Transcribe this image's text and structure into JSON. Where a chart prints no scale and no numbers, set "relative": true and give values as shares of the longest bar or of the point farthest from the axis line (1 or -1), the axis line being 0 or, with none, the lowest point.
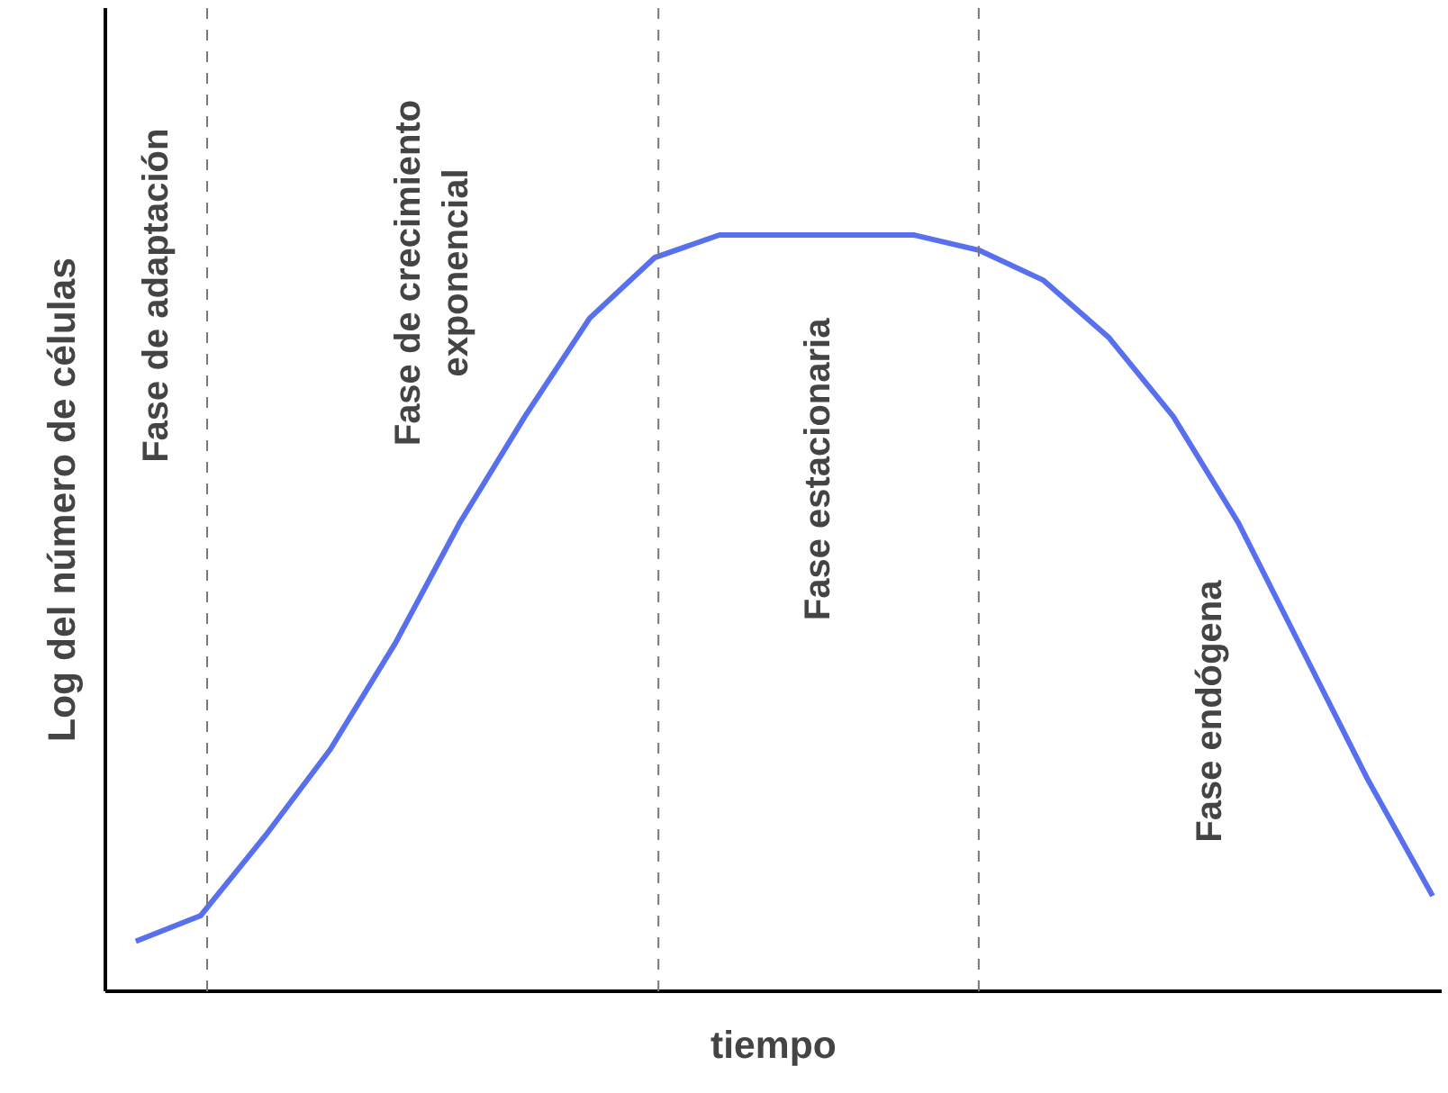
{
  "chart_data": {
    "type": "line",
    "relative": true,
    "xlabel": "tiempo",
    "ylabel": "Log del número de células",
    "categories": [
      null,
      null,
      null,
      null,
      null,
      null,
      null,
      null,
      null,
      null,
      null,
      null,
      null,
      null,
      null,
      null,
      null,
      null,
      null,
      null,
      null
    ],
    "series": [
      {
        "color": "#5870ee",
        "values": [
          0.066,
          0.1,
          0.206,
          0.32,
          0.46,
          0.62,
          0.76,
          0.89,
          0.97,
          1,
          1,
          1,
          1,
          0.98,
          0.94,
          0.865,
          0.76,
          0.62,
          0.45,
          0.28,
          0.126
        ]
      }
    ],
    "annotations": [
      "Fase de adaptación",
      "Fase de crecimiento\nexponencial",
      "Fase estacionaria",
      "Fase endógena"
    ],
    "grid": false,
    "marker": "none",
    "line_style": "solid"
  }
}
